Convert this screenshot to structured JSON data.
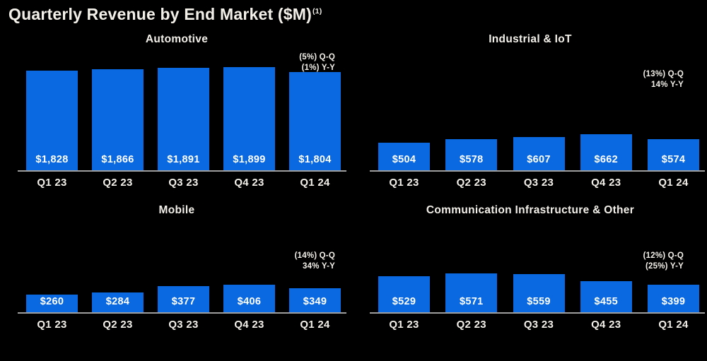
{
  "page": {
    "title": "Quarterly Revenue by End Market ($M)",
    "footnote_marker": "(1)",
    "background_color": "#000000",
    "bar_color": "#0a69e0",
    "axis_color": "#9e9e9e",
    "text_color": "#f3f0e9"
  },
  "chart_data": [
    {
      "type": "bar",
      "title": "Automotive",
      "categories": [
        "Q1 23",
        "Q2 23",
        "Q3 23",
        "Q4 23",
        "Q1 24"
      ],
      "values": [
        1828,
        1866,
        1891,
        1899,
        1804
      ],
      "value_labels": [
        "$1,828",
        "$1,866",
        "$1,891",
        "$1,899",
        "$1,804"
      ],
      "annotation_qq": "(5%) Q-Q",
      "annotation_yy": "(1%) Y-Y",
      "ylim": [
        0,
        2000
      ],
      "grid": false,
      "legend": false,
      "value_label_position": "inside-bottom",
      "bar_color": "#0a69e0"
    },
    {
      "type": "bar",
      "title": "Industrial & IoT",
      "categories": [
        "Q1 23",
        "Q2 23",
        "Q3 23",
        "Q4 23",
        "Q1 24"
      ],
      "values": [
        504,
        578,
        607,
        662,
        574
      ],
      "value_labels": [
        "$504",
        "$578",
        "$607",
        "$662",
        "$574"
      ],
      "annotation_qq": "(13%) Q-Q",
      "annotation_yy": "14% Y-Y",
      "ylim": [
        0,
        2000
      ],
      "grid": false,
      "legend": false,
      "value_label_position": "inside-bottom",
      "bar_color": "#0a69e0"
    },
    {
      "type": "bar",
      "title": "Mobile",
      "categories": [
        "Q1 23",
        "Q2 23",
        "Q3 23",
        "Q4 23",
        "Q1 24"
      ],
      "values": [
        260,
        284,
        377,
        406,
        349
      ],
      "value_labels": [
        "$260",
        "$284",
        "$377",
        "$406",
        "$349"
      ],
      "annotation_qq": "(14%) Q-Q",
      "annotation_yy": "34% Y-Y",
      "ylim": [
        0,
        1400
      ],
      "grid": false,
      "legend": false,
      "value_label_position": "inside-bottom",
      "bar_color": "#0a69e0"
    },
    {
      "type": "bar",
      "title": "Communication Infrastructure & Other",
      "categories": [
        "Q1 23",
        "Q2 23",
        "Q3 23",
        "Q4 23",
        "Q1 24"
      ],
      "values": [
        529,
        571,
        559,
        455,
        399
      ],
      "value_labels": [
        "$529",
        "$571",
        "$559",
        "$455",
        "$399"
      ],
      "annotation_qq": "(12%) Q-Q",
      "annotation_yy": "(25%) Y-Y",
      "ylim": [
        0,
        1400
      ],
      "grid": false,
      "legend": false,
      "value_label_position": "inside-bottom",
      "bar_color": "#0a69e0"
    }
  ]
}
